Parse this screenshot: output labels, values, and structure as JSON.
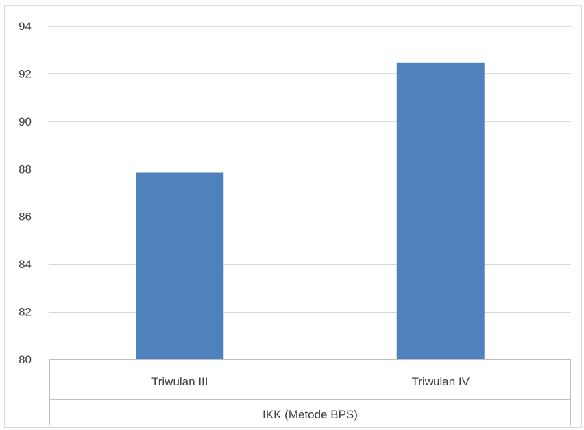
{
  "chart_data": {
    "type": "bar",
    "categories": [
      "Triwulan III",
      "Triwulan IV"
    ],
    "group_label": "IKK (Metode BPS)",
    "series": [
      {
        "values": [
          87.85,
          92.45
        ]
      }
    ],
    "ylim": [
      80,
      94
    ],
    "yticks": [
      80,
      82,
      84,
      86,
      88,
      90,
      92,
      94
    ],
    "grid": true,
    "colors": {
      "bar": "#4F81BD",
      "grid": "#D9D9D9",
      "axis": "#BFBFBF",
      "text": "#404040"
    }
  }
}
